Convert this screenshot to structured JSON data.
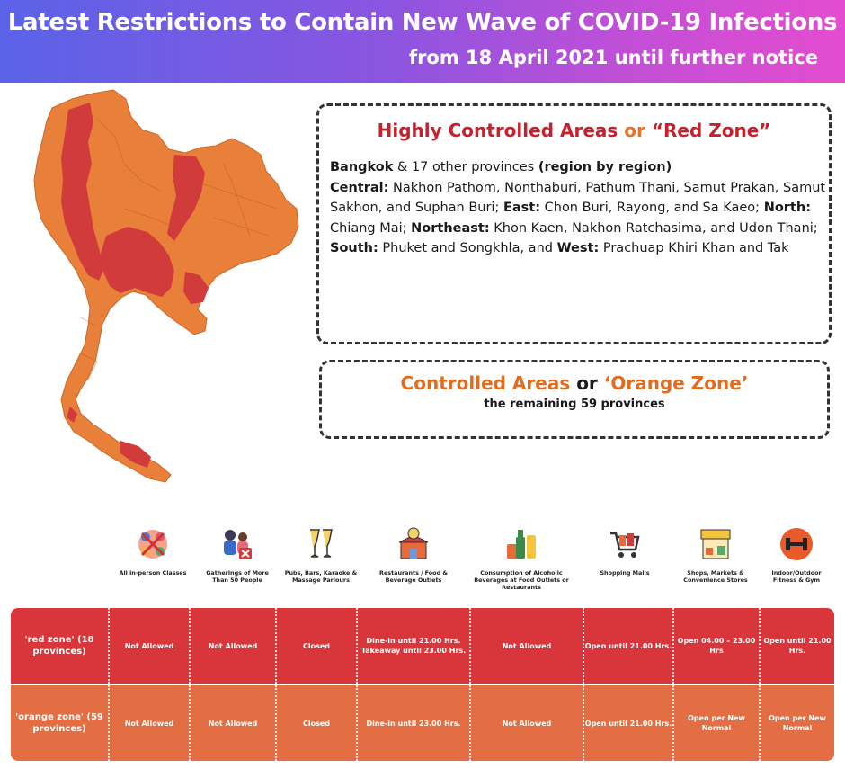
{
  "header": {
    "title": "Latest Restrictions to Contain New Wave of COVID-19 Infections",
    "subtitle": "from 18 April 2021 until further notice"
  },
  "colors": {
    "red_zone": "#d8363b",
    "orange_zone": "#e46e43",
    "map_red": "#d23b3b",
    "map_orange": "#e8803a"
  },
  "red_zone_box": {
    "title_part1": "Highly Controlled Areas",
    "title_or": "or",
    "title_part2": "“Red Zone”",
    "bangkok_label": "Bangkok",
    "bangkok_text": "& 17 other provinces",
    "bangkok_note": "(region by region)",
    "central_label": "Central:",
    "central_text": "Nakhon Pathom, Nonthaburi, Pathum Thani, Samut Prakan, Samut Sakhon, and Suphan Buri;",
    "east_label": "East:",
    "east_text": "Chon Buri, Rayong, and Sa Kaeo;",
    "north_label": "North:",
    "north_text": "Chiang Mai;",
    "northeast_label": "Northeast:",
    "northeast_text": "Khon Kaen, Nakhon Ratchasima, and Udon Thani;",
    "south_label": "South:",
    "south_text": "Phuket and Songkhla, and",
    "west_label": "West:",
    "west_text": "Prachuap Khiri Khan and Tak"
  },
  "orange_zone_box": {
    "title_part1": "Controlled Areas",
    "title_or": "or",
    "title_part2": "‘Orange Zone’",
    "subtitle": "the remaining 59 provinces"
  },
  "categories": [
    {
      "icon": "classes-icon",
      "label": "All in-person Classes"
    },
    {
      "icon": "people-gathering-icon",
      "label": "Gatherings of More Than 50 People"
    },
    {
      "icon": "glasses-cheers-icon",
      "label": "Pubs, Bars, Karaoke & Massage Parlours"
    },
    {
      "icon": "restaurant-icon",
      "label": "Restaurants / Food & Beverage Outlets"
    },
    {
      "icon": "alcohol-bottles-icon",
      "label": "Consumption of Alcoholic Beverages at Food Outlets or Restaurants"
    },
    {
      "icon": "shopping-cart-icon",
      "label": "Shopping Malls"
    },
    {
      "icon": "market-stall-icon",
      "label": "Shops, Markets & Convenience Stores"
    },
    {
      "icon": "dumbbell-icon",
      "label": "Indoor/Outdoor Fitness & Gym"
    }
  ],
  "table": {
    "rows": [
      {
        "zone": "'red zone' (18 provinces)",
        "cells": [
          "Not Allowed",
          "Not Allowed",
          "Closed",
          "Dine-in until 21.00 Hrs. Takeaway until 23.00 Hrs.",
          "Not Allowed",
          "Open until 21.00 Hrs.",
          "Open 04.00 – 23.00 Hrs",
          "Open until 21.00 Hrs."
        ]
      },
      {
        "zone": "'orange zone' (59 provinces)",
        "cells": [
          "Not Allowed",
          "Not Allowed",
          "Closed",
          "Dine-in until 23.00 Hrs.",
          "Not Allowed",
          "Open until 21.00 Hrs.",
          "Open per New Normal",
          "Open per New Normal"
        ]
      }
    ]
  }
}
